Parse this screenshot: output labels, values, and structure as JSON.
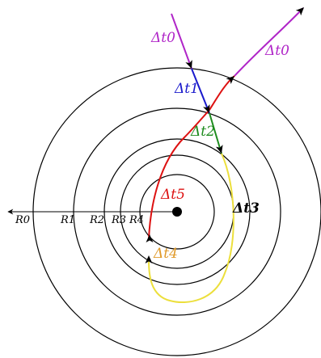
{
  "radii_labels": [
    "R0",
    "R1",
    "R2",
    "R3",
    "R4"
  ],
  "segment_labels": {
    "dt0_in": "Δt0",
    "dt0_out": "Δt0",
    "dt1": "Δt1",
    "dt2": "Δt2",
    "dt3": "Δt3",
    "dt4": "Δt4",
    "dt5": "Δt5"
  },
  "colors": {
    "purple": "#b026c8",
    "blue": "#1a1acc",
    "red": "#dd1111",
    "green": "#1e8c1e",
    "yellow": "#ecdf3c",
    "orange": "#e09a2a",
    "black": "#000000"
  }
}
